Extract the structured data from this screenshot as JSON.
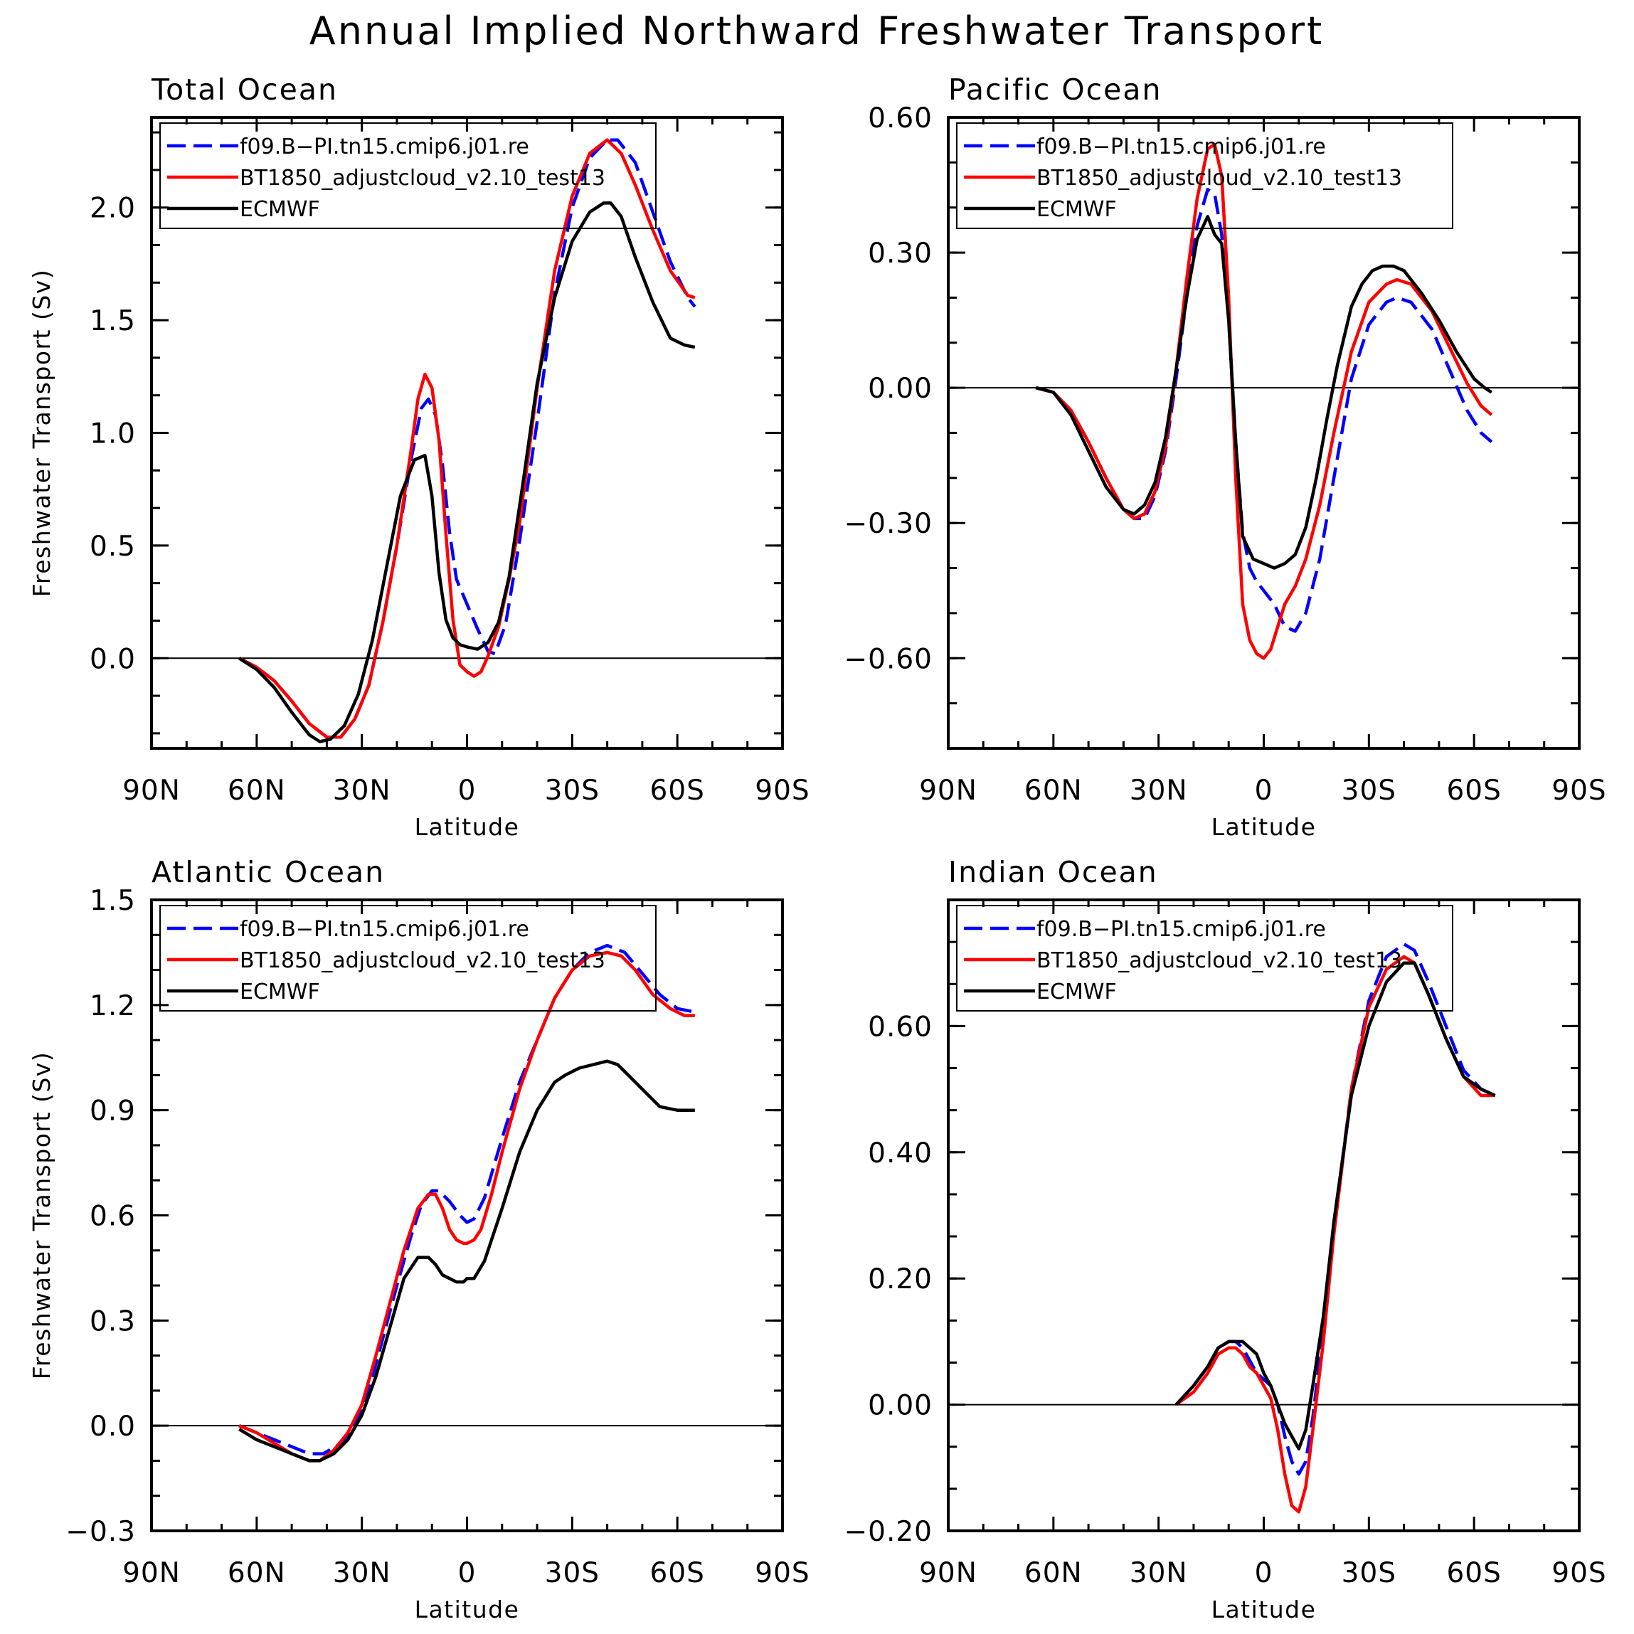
{
  "title": "Annual Implied Northward Freshwater Transport",
  "colors": {
    "blue": "#0000ff",
    "red": "#ff0000",
    "black": "#000000"
  },
  "chart_data": [
    {
      "type": "line",
      "title": "Total Ocean",
      "xlabel": "Latitude",
      "ylabel": "Freshwater Transport (Sv)",
      "x_ticks": [
        "90N",
        "60N",
        "30N",
        "0",
        "30S",
        "60S",
        "90S"
      ],
      "xlim": [
        -90,
        90
      ],
      "ylim": [
        -0.4,
        2.4
      ],
      "y_ticks": [
        0,
        0.5,
        1.0,
        1.5,
        2.0
      ],
      "y_tick_labels": [
        "0.0",
        "0.5",
        "1.0",
        "1.5",
        "2.0"
      ],
      "zero_line": true,
      "legend": [
        "f09.B−PI.tn15.cmip6.j01.re",
        "BT1850_adjustcloud_v2.10_test13",
        "ECMWF"
      ],
      "series": [
        {
          "name": "f09.B−PI.tn15.cmip6.j01.re",
          "color": "#0000ff",
          "dash": true,
          "x": [
            -65,
            -60,
            -55,
            -50,
            -45,
            -40,
            -36,
            -32,
            -28,
            -24,
            -20,
            -16,
            -13,
            -11,
            -9,
            -7,
            -5,
            -3,
            0,
            3,
            6,
            8,
            11,
            15,
            20,
            25,
            30,
            35,
            40,
            43,
            48,
            53,
            58,
            63,
            65
          ],
          "y": [
            0,
            -0.04,
            -0.1,
            -0.19,
            -0.29,
            -0.35,
            -0.35,
            -0.27,
            -0.12,
            0.16,
            0.5,
            0.88,
            1.11,
            1.15,
            1.08,
            0.86,
            0.56,
            0.35,
            0.24,
            0.13,
            0.03,
            0.02,
            0.15,
            0.52,
            1.05,
            1.62,
            2.0,
            2.22,
            2.3,
            2.3,
            2.2,
            1.98,
            1.76,
            1.6,
            1.56
          ]
        },
        {
          "name": "BT1850_adjustcloud_v2.10_test13",
          "color": "#ff0000",
          "dash": false,
          "x": [
            -65,
            -60,
            -55,
            -50,
            -45,
            -40,
            -36,
            -32,
            -28,
            -24,
            -20,
            -16,
            -14,
            -12,
            -10,
            -8,
            -6,
            -4,
            -2,
            0,
            2,
            4,
            6,
            9,
            12,
            15,
            20,
            25,
            30,
            35,
            40,
            44,
            48,
            53,
            58,
            63,
            65
          ],
          "y": [
            0,
            -0.04,
            -0.1,
            -0.19,
            -0.29,
            -0.35,
            -0.35,
            -0.27,
            -0.12,
            0.16,
            0.5,
            0.92,
            1.15,
            1.26,
            1.2,
            0.97,
            0.55,
            0.17,
            -0.03,
            -0.06,
            -0.08,
            -0.06,
            0.01,
            0.14,
            0.35,
            0.6,
            1.2,
            1.72,
            2.05,
            2.24,
            2.3,
            2.24,
            2.1,
            1.9,
            1.72,
            1.61,
            1.6
          ]
        },
        {
          "name": "ECMWF",
          "color": "#000000",
          "dash": false,
          "x": [
            -65,
            -60,
            -55,
            -50,
            -45,
            -42,
            -39,
            -35,
            -31,
            -27,
            -23,
            -19,
            -15,
            -12,
            -10,
            -8,
            -6,
            -4,
            -2,
            0,
            3,
            6,
            9,
            12,
            16,
            20,
            25,
            30,
            35,
            39,
            41,
            44,
            48,
            53,
            58,
            62,
            65
          ],
          "y": [
            0,
            -0.05,
            -0.13,
            -0.24,
            -0.34,
            -0.37,
            -0.36,
            -0.3,
            -0.16,
            0.08,
            0.4,
            0.72,
            0.88,
            0.9,
            0.72,
            0.38,
            0.17,
            0.09,
            0.06,
            0.05,
            0.04,
            0.07,
            0.16,
            0.36,
            0.78,
            1.22,
            1.6,
            1.85,
            1.98,
            2.02,
            2.02,
            1.96,
            1.78,
            1.58,
            1.42,
            1.39,
            1.38
          ]
        }
      ]
    },
    {
      "type": "line",
      "title": "Pacific Ocean",
      "xlabel": "Latitude",
      "ylabel": "",
      "x_ticks": [
        "90N",
        "60N",
        "30N",
        "0",
        "30S",
        "60S",
        "90S"
      ],
      "xlim": [
        -90,
        90
      ],
      "ylim": [
        -0.8,
        0.6
      ],
      "y_ticks": [
        -0.6,
        -0.3,
        0,
        0.3,
        0.6
      ],
      "y_tick_labels": [
        "−0.60",
        "−0.30",
        "0.00",
        "0.30",
        "0.60"
      ],
      "zero_line": true,
      "legend": [
        "f09.B−PI.tn15.cmip6.j01.re",
        "BT1850_adjustcloud_v2.10_test13",
        "ECMWF"
      ],
      "series": [
        {
          "name": "f09.B−PI.tn15.cmip6.j01.re",
          "color": "#0000ff",
          "dash": true,
          "x": [
            -65,
            -60,
            -55,
            -50,
            -45,
            -40,
            -37,
            -34,
            -31,
            -28,
            -25,
            -22,
            -19,
            -16,
            -14,
            -12,
            -10,
            -8,
            -6,
            -4,
            -2,
            0,
            3,
            6,
            9,
            12,
            16,
            20,
            25,
            30,
            35,
            38,
            42,
            48,
            53,
            58,
            62,
            65
          ],
          "y": [
            0,
            -0.01,
            -0.05,
            -0.12,
            -0.2,
            -0.27,
            -0.29,
            -0.29,
            -0.24,
            -0.14,
            0.02,
            0.2,
            0.36,
            0.44,
            0.43,
            0.34,
            0.15,
            -0.12,
            -0.32,
            -0.4,
            -0.43,
            -0.45,
            -0.48,
            -0.53,
            -0.54,
            -0.5,
            -0.38,
            -0.2,
            0.02,
            0.14,
            0.19,
            0.2,
            0.19,
            0.13,
            0.04,
            -0.05,
            -0.1,
            -0.12
          ]
        },
        {
          "name": "BT1850_adjustcloud_v2.10_test13",
          "color": "#ff0000",
          "dash": false,
          "x": [
            -65,
            -60,
            -55,
            -50,
            -45,
            -40,
            -37,
            -34,
            -31,
            -28,
            -25,
            -22,
            -19,
            -16,
            -14,
            -12,
            -10,
            -8,
            -6,
            -4,
            -2,
            0,
            2,
            4,
            6,
            9,
            12,
            16,
            20,
            25,
            30,
            35,
            38,
            42,
            48,
            53,
            58,
            62,
            65
          ],
          "y": [
            0,
            -0.01,
            -0.05,
            -0.12,
            -0.2,
            -0.27,
            -0.29,
            -0.28,
            -0.23,
            -0.13,
            0.04,
            0.24,
            0.42,
            0.53,
            0.54,
            0.47,
            0.2,
            -0.2,
            -0.48,
            -0.56,
            -0.59,
            -0.6,
            -0.58,
            -0.53,
            -0.48,
            -0.44,
            -0.38,
            -0.26,
            -0.1,
            0.08,
            0.19,
            0.23,
            0.24,
            0.23,
            0.17,
            0.09,
            0.01,
            -0.04,
            -0.06
          ]
        },
        {
          "name": "ECMWF",
          "color": "#000000",
          "dash": false,
          "x": [
            -65,
            -60,
            -55,
            -50,
            -45,
            -40,
            -37,
            -34,
            -31,
            -28,
            -25,
            -22,
            -19,
            -16,
            -14,
            -12,
            -10,
            -8,
            -6,
            -3,
            0,
            3,
            6,
            9,
            12,
            15,
            18,
            21,
            25,
            28,
            31,
            34,
            37,
            40,
            45,
            50,
            55,
            60,
            63,
            65
          ],
          "y": [
            0,
            -0.01,
            -0.06,
            -0.14,
            -0.22,
            -0.27,
            -0.28,
            -0.26,
            -0.21,
            -0.11,
            0.04,
            0.2,
            0.33,
            0.38,
            0.34,
            0.32,
            0.15,
            -0.12,
            -0.33,
            -0.38,
            -0.39,
            -0.4,
            -0.39,
            -0.37,
            -0.31,
            -0.2,
            -0.07,
            0.05,
            0.18,
            0.23,
            0.26,
            0.27,
            0.27,
            0.26,
            0.21,
            0.15,
            0.08,
            0.02,
            0.0,
            -0.01
          ]
        }
      ]
    },
    {
      "type": "line",
      "title": "Atlantic Ocean",
      "xlabel": "Latitude",
      "ylabel": "Freshwater Transport (Sv)",
      "x_ticks": [
        "90N",
        "60N",
        "30N",
        "0",
        "30S",
        "60S",
        "90S"
      ],
      "xlim": [
        -90,
        90
      ],
      "ylim": [
        -0.3,
        1.5
      ],
      "y_ticks": [
        -0.3,
        0,
        0.3,
        0.6,
        0.9,
        1.2,
        1.5
      ],
      "y_tick_labels": [
        "−0.3",
        "0.0",
        "0.3",
        "0.6",
        "0.9",
        "1.2",
        "1.5"
      ],
      "zero_line": true,
      "legend": [
        "f09.B−PI.tn15.cmip6.j01.re",
        "BT1850_adjustcloud_v2.10_test13",
        "ECMWF"
      ],
      "series": [
        {
          "name": "f09.B−PI.tn15.cmip6.j01.re",
          "color": "#0000ff",
          "dash": true,
          "x": [
            -65,
            -60,
            -55,
            -50,
            -45,
            -41,
            -36,
            -32,
            -28,
            -24,
            -20,
            -16,
            -13,
            -10,
            -8,
            -5,
            -2,
            0,
            2,
            5,
            10,
            15,
            20,
            25,
            30,
            35,
            40,
            45,
            50,
            55,
            60,
            65
          ],
          "y": [
            0,
            -0.02,
            -0.04,
            -0.06,
            -0.08,
            -0.08,
            -0.05,
            0.0,
            0.1,
            0.25,
            0.4,
            0.54,
            0.63,
            0.67,
            0.67,
            0.64,
            0.6,
            0.58,
            0.59,
            0.65,
            0.82,
            0.98,
            1.1,
            1.22,
            1.3,
            1.35,
            1.37,
            1.35,
            1.29,
            1.23,
            1.19,
            1.18
          ]
        },
        {
          "name": "BT1850_adjustcloud_v2.10_test13",
          "color": "#ff0000",
          "dash": false,
          "x": [
            -65,
            -60,
            -55,
            -50,
            -45,
            -42,
            -38,
            -34,
            -30,
            -26,
            -22,
            -18,
            -14,
            -11,
            -9,
            -7,
            -5,
            -3,
            -1,
            0,
            2,
            4,
            7,
            10,
            15,
            20,
            25,
            30,
            35,
            40,
            44,
            48,
            53,
            58,
            62,
            65
          ],
          "y": [
            0,
            -0.02,
            -0.05,
            -0.08,
            -0.1,
            -0.1,
            -0.07,
            -0.02,
            0.06,
            0.2,
            0.35,
            0.5,
            0.62,
            0.66,
            0.66,
            0.62,
            0.56,
            0.53,
            0.52,
            0.52,
            0.53,
            0.56,
            0.66,
            0.78,
            0.96,
            1.1,
            1.22,
            1.3,
            1.34,
            1.35,
            1.34,
            1.3,
            1.23,
            1.19,
            1.17,
            1.17
          ]
        },
        {
          "name": "ECMWF",
          "color": "#000000",
          "dash": false,
          "x": [
            -65,
            -60,
            -55,
            -50,
            -45,
            -42,
            -38,
            -34,
            -30,
            -26,
            -22,
            -18,
            -14,
            -11,
            -9,
            -7,
            -5,
            -3,
            -1,
            0,
            2,
            5,
            10,
            15,
            20,
            25,
            28,
            32,
            36,
            40,
            43,
            46,
            50,
            55,
            60,
            65
          ],
          "y": [
            -0.01,
            -0.04,
            -0.06,
            -0.08,
            -0.1,
            -0.1,
            -0.08,
            -0.04,
            0.03,
            0.14,
            0.28,
            0.42,
            0.48,
            0.48,
            0.46,
            0.43,
            0.42,
            0.41,
            0.41,
            0.42,
            0.42,
            0.47,
            0.62,
            0.78,
            0.9,
            0.98,
            1.0,
            1.02,
            1.03,
            1.04,
            1.03,
            1.0,
            0.96,
            0.91,
            0.9,
            0.9
          ]
        }
      ]
    },
    {
      "type": "line",
      "title": "Indian Ocean",
      "xlabel": "Latitude",
      "ylabel": "",
      "x_ticks": [
        "90N",
        "60N",
        "30N",
        "0",
        "30S",
        "60S",
        "90S"
      ],
      "xlim": [
        -90,
        90
      ],
      "ylim": [
        -0.2,
        0.8
      ],
      "y_ticks": [
        -0.2,
        0,
        0.2,
        0.4,
        0.6
      ],
      "y_tick_labels": [
        "−0.20",
        "0.00",
        "0.20",
        "0.40",
        "0.60"
      ],
      "zero_line": true,
      "legend": [
        "f09.B−PI.tn15.cmip6.j01.re",
        "BT1850_adjustcloud_v2.10_test13",
        "ECMWF"
      ],
      "series": [
        {
          "name": "f09.B−PI.tn15.cmip6.j01.re",
          "color": "#0000ff",
          "dash": true,
          "x": [
            -25,
            -20,
            -16,
            -13,
            -10,
            -8,
            -6,
            -4,
            -2,
            0,
            2,
            4,
            6,
            8,
            10,
            12,
            14,
            17,
            20,
            25,
            30,
            35,
            40,
            43,
            47,
            52,
            57,
            62,
            66
          ],
          "y": [
            0,
            0.03,
            0.06,
            0.09,
            0.1,
            0.1,
            0.09,
            0.07,
            0.05,
            0.04,
            0.03,
            0.0,
            -0.05,
            -0.09,
            -0.11,
            -0.09,
            -0.02,
            0.12,
            0.28,
            0.5,
            0.64,
            0.71,
            0.73,
            0.72,
            0.67,
            0.6,
            0.53,
            0.5,
            0.49
          ]
        },
        {
          "name": "BT1850_adjustcloud_v2.10_test13",
          "color": "#ff0000",
          "dash": false,
          "x": [
            -25,
            -20,
            -16,
            -13,
            -10,
            -8,
            -6,
            -4,
            -2,
            0,
            2,
            4,
            6,
            8,
            10,
            12,
            14,
            17,
            20,
            25,
            30,
            35,
            40,
            43,
            47,
            52,
            57,
            62,
            66
          ],
          "y": [
            0,
            0.02,
            0.05,
            0.08,
            0.09,
            0.09,
            0.08,
            0.06,
            0.05,
            0.03,
            0.01,
            -0.04,
            -0.11,
            -0.16,
            -0.17,
            -0.13,
            -0.04,
            0.1,
            0.27,
            0.5,
            0.63,
            0.69,
            0.71,
            0.7,
            0.65,
            0.58,
            0.52,
            0.49,
            0.49
          ]
        },
        {
          "name": "ECMWF",
          "color": "#000000",
          "dash": false,
          "x": [
            -25,
            -20,
            -16,
            -13,
            -10,
            -8,
            -6,
            -4,
            -2,
            0,
            2,
            4,
            6,
            8,
            10,
            12,
            14,
            17,
            20,
            25,
            30,
            35,
            40,
            43,
            47,
            52,
            57,
            62,
            66
          ],
          "y": [
            0,
            0.03,
            0.06,
            0.09,
            0.1,
            0.1,
            0.1,
            0.09,
            0.08,
            0.05,
            0.03,
            0.0,
            -0.03,
            -0.05,
            -0.07,
            -0.04,
            0.03,
            0.14,
            0.29,
            0.49,
            0.6,
            0.67,
            0.7,
            0.7,
            0.65,
            0.58,
            0.52,
            0.5,
            0.49
          ]
        }
      ]
    }
  ]
}
